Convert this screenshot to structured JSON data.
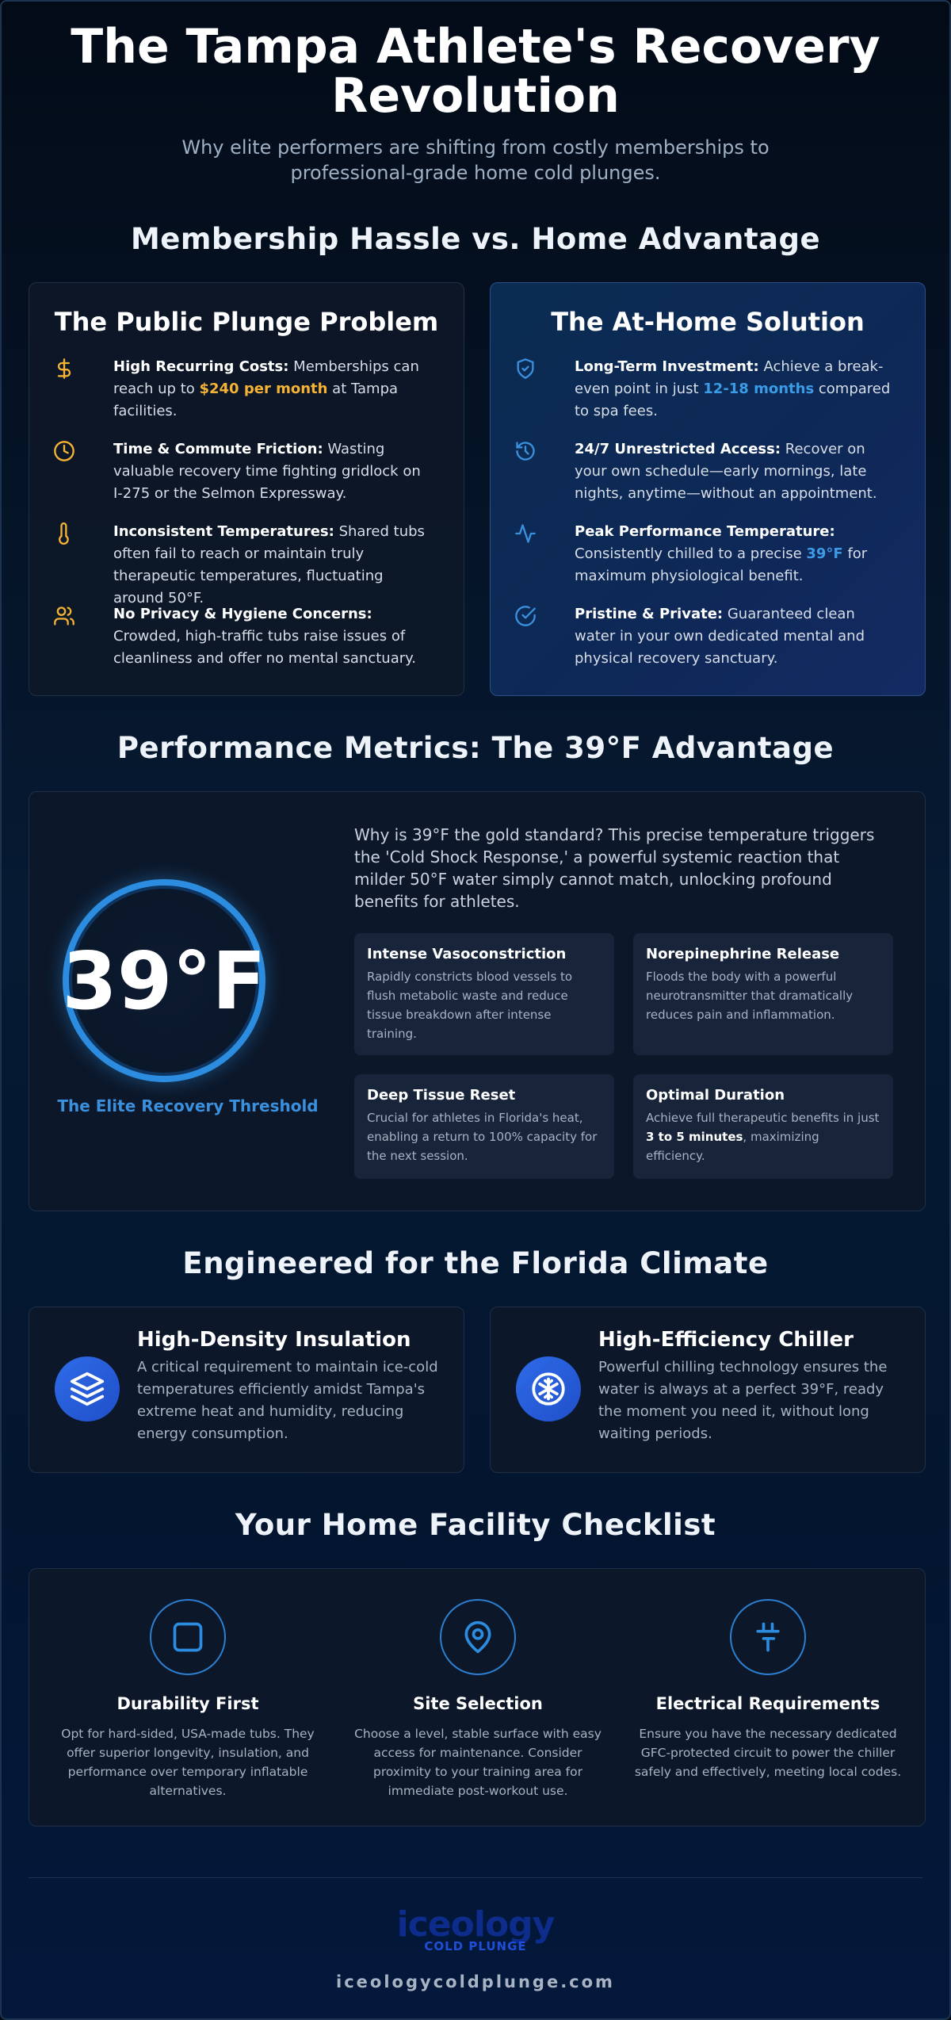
{
  "hero": {
    "title_line1": "The Tampa Athlete's Recovery",
    "title_line2": "Revolution",
    "subtitle": "Why elite performers are shifting from costly memberships to professional-grade home cold plunges."
  },
  "comparison": {
    "title": "Membership Hassle vs. Home Advantage",
    "public": {
      "title": "The Public Plunge Problem",
      "icon_color": "#f5b335",
      "items": [
        {
          "icon": "dollar-icon",
          "strong": "High Recurring Costs:",
          "pre": " Memberships can reach up to ",
          "highlight": "$240 per month",
          "post": " at Tampa facilities."
        },
        {
          "icon": "clock-icon",
          "strong": "Time & Commute Friction:",
          "text": " Wasting valuable recovery time fighting gridlock on I-275 or the Selmon Expressway."
        },
        {
          "icon": "thermometer-icon",
          "strong": "Inconsistent Temperatures:",
          "text": " Shared tubs often fail to reach or maintain truly therapeutic temperatures, fluctuating around 50°F."
        },
        {
          "icon": "users-icon",
          "strong": "No Privacy & Hygiene Concerns:",
          "text": " Crowded, high-traffic tubs raise issues of cleanliness and offer no mental sanctuary."
        }
      ]
    },
    "home": {
      "title": "The At-Home Solution",
      "icon_color": "#3b90de",
      "items": [
        {
          "icon": "shield-check-icon",
          "strong": "Long-Term Investment:",
          "pre": " Achieve a break-even point in just ",
          "highlight": "12-18 months",
          "post": " compared to spa fees."
        },
        {
          "icon": "history-icon",
          "strong": "24/7 Unrestricted Access:",
          "text": " Recover on your own schedule—early mornings, late nights, anytime—without an appointment."
        },
        {
          "icon": "pulse-icon",
          "strong": "Peak Performance Temperature:",
          "pre": " Consistently chilled to a precise ",
          "highlight": "39°F",
          "post": " for maximum physiological benefit."
        },
        {
          "icon": "check-circle-icon",
          "strong": "Pristine & Private:",
          "text": " Guaranteed clean water in your own dedicated mental and physical recovery sanctuary."
        }
      ]
    }
  },
  "metrics": {
    "title": "Performance Metrics: The 39°F Advantage",
    "big_value": "39°F",
    "caption": "The Elite Recovery Threshold",
    "intro": "Why is 39°F the gold standard? This precise temperature triggers the 'Cold Shock Response,' a powerful systemic reaction that milder 50°F water simply cannot match, unlocking profound benefits for athletes.",
    "cards": [
      {
        "title": "Intense Vasoconstriction",
        "text": "Rapidly constricts blood vessels to flush metabolic waste and reduce tissue breakdown after intense training."
      },
      {
        "title": "Norepinephrine Release",
        "text": "Floods the body with a powerful neurotransmitter that dramatically reduces pain and inflammation."
      },
      {
        "title": "Deep Tissue Reset",
        "text": "Crucial for athletes in Florida's heat, enabling a return to 100% capacity for the next session."
      },
      {
        "title": "Optimal Duration",
        "pre": "Achieve full therapeutic benefits in just ",
        "strong": "3 to 5 minutes",
        "post": ", maximizing efficiency."
      }
    ]
  },
  "climate": {
    "title": "Engineered for the Florida Climate",
    "cards": [
      {
        "icon": "layers-icon",
        "title": "High-Density Insulation",
        "text": "A critical requirement to maintain ice-cold temperatures efficiently amidst Tampa's extreme heat and humidity, reducing energy consumption."
      },
      {
        "icon": "snowflake-gear-icon",
        "title": "High-Efficiency Chiller",
        "text": "Powerful chilling technology ensures the water is always at a perfect 39°F, ready the moment you need it, without long waiting periods."
      }
    ]
  },
  "checklist": {
    "title": "Your Home Facility Checklist",
    "items": [
      {
        "icon": "square-icon",
        "title": "Durability First",
        "text": "Opt for hard-sided, USA-made tubs. They offer superior longevity, insulation, and performance over temporary inflatable alternatives."
      },
      {
        "icon": "map-pin-icon",
        "title": "Site Selection",
        "text": "Choose a level, stable surface with easy access for maintenance. Consider proximity to your training area for immediate post-workout use."
      },
      {
        "icon": "plug-icon",
        "title": "Electrical Requirements",
        "text": "Ensure you have the necessary dedicated GFC-protected circuit to power the chiller safely and effectively, meeting local codes."
      }
    ]
  },
  "footer": {
    "logo_word": "iceology",
    "logo_sub": "COLD PLUNGE",
    "site": "iceologycoldplunge.com"
  }
}
